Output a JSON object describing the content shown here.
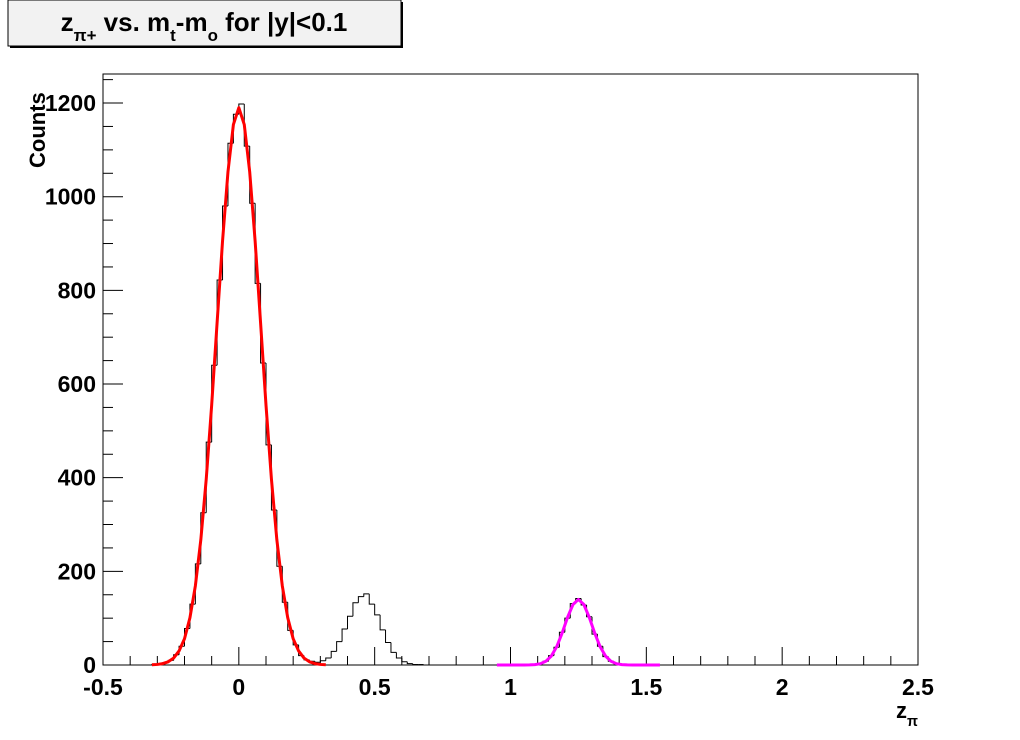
{
  "chart_data": {
    "type": "histogram",
    "title": [
      {
        "text": "z"
      },
      {
        "text": "π+",
        "baseline": "sub"
      },
      {
        "text": " vs. m"
      },
      {
        "text": "t",
        "baseline": "sub"
      },
      {
        "text": "-m"
      },
      {
        "text": "o",
        "baseline": "sub"
      },
      {
        "text": " for |y|<0.1"
      }
    ],
    "x_label": [
      {
        "text": "z"
      },
      {
        "text": "π",
        "baseline": "sub"
      }
    ],
    "y_label": "Counts",
    "bins": [
      -0.5,
      -0.48,
      -0.46,
      -0.44,
      -0.42,
      -0.4,
      -0.38,
      -0.36,
      -0.34,
      -0.32,
      -0.3,
      -0.28,
      -0.26,
      -0.24,
      -0.22,
      -0.2,
      -0.18,
      -0.16,
      -0.14,
      -0.12,
      -0.1,
      -0.08,
      -0.06,
      -0.04,
      -0.02,
      0,
      0.02,
      0.04,
      0.06,
      0.08,
      0.1,
      0.12,
      0.14,
      0.16,
      0.18,
      0.2,
      0.22,
      0.24,
      0.26,
      0.28,
      0.3,
      0.32,
      0.34,
      0.36,
      0.38,
      0.4,
      0.42,
      0.44,
      0.46,
      0.48,
      0.5,
      0.52,
      0.54,
      0.56,
      0.58,
      0.6,
      0.62,
      0.64,
      0.66,
      0.68,
      0.7,
      0.72,
      0.74,
      0.76,
      0.78,
      0.8,
      0.82,
      0.84,
      0.86,
      0.88,
      0.9,
      0.92,
      0.94,
      0.96,
      0.98,
      1,
      1.02,
      1.04,
      1.06,
      1.08,
      1.1,
      1.12,
      1.14,
      1.16,
      1.18,
      1.2,
      1.22,
      1.24,
      1.26,
      1.28,
      1.3,
      1.32,
      1.34,
      1.36,
      1.38,
      1.4,
      1.42,
      1.44,
      1.46,
      1.48,
      1.5,
      1.52,
      1.54,
      1.56,
      1.58,
      1.6,
      1.62,
      1.64,
      1.66,
      1.68,
      1.7,
      1.72,
      1.74,
      1.76,
      1.78,
      1.8,
      1.82,
      1.84,
      1.86,
      1.88,
      1.9,
      1.92,
      1.94,
      1.96,
      1.98,
      2,
      2.02,
      2.04,
      2.06,
      2.08,
      2.1,
      2.12,
      2.14,
      2.16,
      2.18,
      2.2,
      2.22,
      2.24,
      2.26,
      2.28,
      2.3,
      2.32,
      2.34,
      2.36,
      2.38,
      2.4,
      2.42,
      2.44,
      2.46,
      2.48,
      2.5
    ],
    "values": [
      0,
      0,
      0,
      0,
      0,
      0,
      0,
      0,
      0,
      1,
      2,
      5,
      10,
      22,
      40,
      78,
      130,
      216,
      325,
      476,
      640,
      822,
      980,
      1114,
      1176,
      1198,
      1108,
      986,
      815,
      645,
      470,
      331,
      211,
      134,
      74,
      43,
      20,
      11,
      8,
      6,
      9,
      15,
      29,
      50,
      77,
      104,
      133,
      146,
      152,
      130,
      107,
      75,
      48,
      27,
      15,
      7,
      3,
      1,
      1,
      0,
      0,
      0,
      0,
      0,
      0,
      0,
      0,
      0,
      0,
      0,
      0,
      0,
      0,
      0,
      0,
      0,
      0,
      0,
      0,
      0,
      3,
      8,
      20,
      38,
      70,
      100,
      131,
      142,
      128,
      103,
      66,
      40,
      18,
      8,
      3,
      1,
      0,
      0,
      0,
      0,
      0,
      0,
      0,
      0,
      0,
      0,
      0,
      0,
      0,
      0,
      0,
      0,
      0,
      0,
      0,
      0,
      0,
      0,
      0,
      0,
      0,
      0,
      0,
      0,
      0,
      0,
      0,
      0,
      0,
      0,
      0,
      0,
      0,
      0,
      0,
      0,
      0,
      0,
      0,
      0,
      0,
      0,
      0,
      0,
      0,
      0,
      0,
      0,
      0,
      0
    ],
    "color": "#000000",
    "curves": [
      {
        "color": "#ff0000",
        "x": [
          -0.32,
          -0.3,
          -0.28,
          -0.26,
          -0.24,
          -0.22,
          -0.2,
          -0.18,
          -0.16,
          -0.14,
          -0.12,
          -0.1,
          -0.08,
          -0.06,
          -0.04,
          -0.02,
          0,
          0.02,
          0.04,
          0.06,
          0.08,
          0.1,
          0.12,
          0.14,
          0.16,
          0.18,
          0.2,
          0.22,
          0.24,
          0.26,
          0.28,
          0.3,
          0.32
        ],
        "y": [
          0.5,
          1.2,
          3.0,
          6.9,
          14.8,
          30,
          56,
          101,
          169,
          267,
          397,
          555,
          731,
          905,
          1053,
          1154,
          1190,
          1154,
          1053,
          905,
          731,
          555,
          397,
          267,
          169,
          101,
          56,
          30,
          14.8,
          6.9,
          3.0,
          1.2,
          0.5
        ]
      },
      {
        "color": "#ff00ff",
        "x": [
          0.95,
          0.97,
          0.99,
          1.01,
          1.03,
          1.05,
          1.07,
          1.09,
          1.11,
          1.13,
          1.15,
          1.17,
          1.19,
          1.21,
          1.23,
          1.25,
          1.27,
          1.29,
          1.31,
          1.33,
          1.35,
          1.37,
          1.39,
          1.41,
          1.43,
          1.45,
          1.47,
          1.49,
          1.51,
          1.53,
          1.55
        ],
        "y": [
          0,
          0,
          0,
          0,
          0,
          0.05,
          0.2,
          0.8,
          2.8,
          7.9,
          18.9,
          38.9,
          68.1,
          101.7,
          129.2,
          140,
          129.2,
          101.7,
          68.1,
          38.9,
          18.9,
          7.9,
          2.8,
          0.8,
          0.2,
          0.05,
          0,
          0,
          0,
          0,
          0
        ]
      }
    ],
    "xlim": [
      -0.5,
      2.5
    ],
    "xticks": [
      -0.5,
      0,
      0.5,
      1,
      1.5,
      2,
      2.5
    ],
    "ylim": [
      0,
      1262
    ],
    "yticks": [
      0,
      200,
      400,
      600,
      800,
      1000,
      1200
    ],
    "x_minor_divisions": 5,
    "y_minor_divisions": 4,
    "grid": false
  }
}
